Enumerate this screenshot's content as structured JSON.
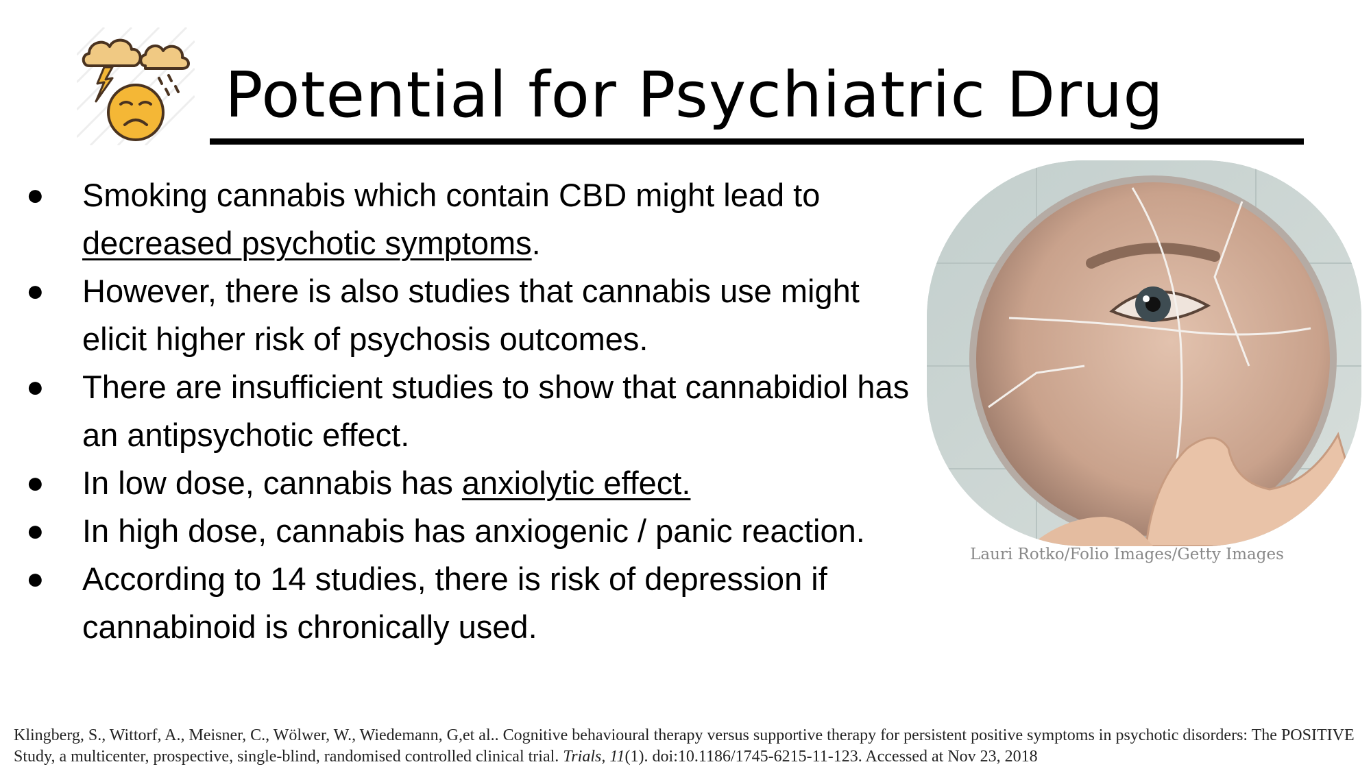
{
  "slide": {
    "title": "Potential for Psychiatric Drug",
    "logo_icon": "storm-cloud-sad-face-icon"
  },
  "bullets": [
    {
      "lead": "Smoking cannabis which contain CBD might lead to ",
      "link": "decreased psychotic symptoms",
      "trail": "."
    },
    {
      "lead": "However, there is also studies that cannabis use might elicit higher risk of psychosis outcomes.",
      "link": "",
      "trail": ""
    },
    {
      "lead": "There are insufficient studies to show that cannabidiol has an antipsychotic effect.",
      "link": "",
      "trail": ""
    },
    {
      "lead": "In low dose, cannabis has ",
      "link": "anxiolytic effect.",
      "trail": ""
    },
    {
      "lead": "In high dose, cannabis has anxiogenic / panic reaction.",
      "link": "",
      "trail": ""
    },
    {
      "lead": "According to 14 studies, there is risk of depression if cannabinoid is chronically used.",
      "link": "",
      "trail": ""
    }
  ],
  "bullet_marker": "●",
  "photo": {
    "icon": "broken-mirror-photo",
    "caption": "Lauri Rotko/Folio Images/Getty Images"
  },
  "reference": {
    "before": "Klingberg, S., Wittorf, A., Meisner, C., Wölwer, W., Wiedemann, G,et al.. Cognitive behavioural therapy versus supportive therapy for persistent positive symptoms in psychotic disorders: The POSITIVE Study, a multicenter, prospective, single-blind, randomised controlled clinical trial. ",
    "journal": "Trials, 11",
    "after": "(1). doi:10.1186/1745-6215-11-123. Accessed at Nov 23, 2018"
  },
  "colors": {
    "background": "#ffffff",
    "text": "#000000",
    "caption": "#888888",
    "emoji_face": "#f4b736",
    "cloud": "#f0c983"
  }
}
